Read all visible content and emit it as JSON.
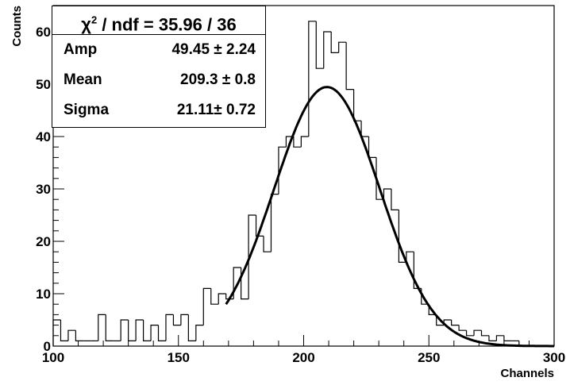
{
  "chart_data": {
    "type": "histogram",
    "title": "",
    "xlabel": "Channels",
    "ylabel": "Counts",
    "xlim": [
      100,
      300
    ],
    "ylim": [
      0,
      65
    ],
    "bin_width": 3,
    "x_ticks": [
      "100",
      "150",
      "200",
      "250",
      "300"
    ],
    "y_ticks": [
      "0",
      "10",
      "20",
      "30",
      "40",
      "50",
      "60"
    ],
    "bins": [
      {
        "x": 100,
        "y": 5
      },
      {
        "x": 103,
        "y": 1
      },
      {
        "x": 106,
        "y": 3
      },
      {
        "x": 109,
        "y": 1
      },
      {
        "x": 112,
        "y": 1
      },
      {
        "x": 115,
        "y": 1
      },
      {
        "x": 118,
        "y": 6
      },
      {
        "x": 121,
        "y": 1
      },
      {
        "x": 124,
        "y": 1
      },
      {
        "x": 127,
        "y": 5
      },
      {
        "x": 130,
        "y": 1
      },
      {
        "x": 133,
        "y": 5
      },
      {
        "x": 136,
        "y": 1
      },
      {
        "x": 139,
        "y": 4
      },
      {
        "x": 142,
        "y": 1
      },
      {
        "x": 145,
        "y": 6
      },
      {
        "x": 148,
        "y": 4
      },
      {
        "x": 151,
        "y": 6
      },
      {
        "x": 154,
        "y": 1
      },
      {
        "x": 157,
        "y": 4
      },
      {
        "x": 160,
        "y": 11
      },
      {
        "x": 163,
        "y": 8
      },
      {
        "x": 166,
        "y": 10
      },
      {
        "x": 169,
        "y": 9
      },
      {
        "x": 172,
        "y": 15
      },
      {
        "x": 175,
        "y": 9
      },
      {
        "x": 178,
        "y": 25
      },
      {
        "x": 181,
        "y": 21
      },
      {
        "x": 184,
        "y": 18
      },
      {
        "x": 187,
        "y": 29
      },
      {
        "x": 190,
        "y": 38
      },
      {
        "x": 193,
        "y": 40
      },
      {
        "x": 196,
        "y": 38
      },
      {
        "x": 199,
        "y": 40
      },
      {
        "x": 202,
        "y": 62
      },
      {
        "x": 205,
        "y": 53
      },
      {
        "x": 208,
        "y": 60
      },
      {
        "x": 211,
        "y": 56
      },
      {
        "x": 214,
        "y": 58
      },
      {
        "x": 217,
        "y": 49
      },
      {
        "x": 220,
        "y": 43
      },
      {
        "x": 223,
        "y": 40
      },
      {
        "x": 226,
        "y": 36
      },
      {
        "x": 229,
        "y": 28
      },
      {
        "x": 232,
        "y": 30
      },
      {
        "x": 235,
        "y": 26
      },
      {
        "x": 238,
        "y": 16
      },
      {
        "x": 241,
        "y": 18
      },
      {
        "x": 244,
        "y": 11
      },
      {
        "x": 247,
        "y": 8
      },
      {
        "x": 250,
        "y": 6
      },
      {
        "x": 253,
        "y": 4
      },
      {
        "x": 256,
        "y": 5
      },
      {
        "x": 259,
        "y": 4
      },
      {
        "x": 262,
        "y": 3
      },
      {
        "x": 265,
        "y": 2
      },
      {
        "x": 268,
        "y": 3
      },
      {
        "x": 271,
        "y": 2
      },
      {
        "x": 274,
        "y": 1
      },
      {
        "x": 277,
        "y": 2
      },
      {
        "x": 280,
        "y": 1
      },
      {
        "x": 283,
        "y": 1
      },
      {
        "x": 286,
        "y": 0
      },
      {
        "x": 289,
        "y": 0
      },
      {
        "x": 292,
        "y": 0
      },
      {
        "x": 295,
        "y": 0
      }
    ],
    "fit": {
      "function": "gaussian",
      "x_range": [
        169,
        300
      ],
      "amp": 49.45,
      "mean": 209.3,
      "sigma": 21.11
    },
    "stats_box": {
      "chi2_ndf": "/ ndf = 35.96 / 36",
      "rows": [
        {
          "label": "Amp",
          "value": "49.45 ± 2.24"
        },
        {
          "label": "Mean",
          "value": "209.3 ± 0.8"
        },
        {
          "label": "Sigma",
          "value": "21.11± 0.72"
        }
      ]
    },
    "colors": {
      "histogram": "#000000",
      "fit": "#000000",
      "background": "#ffffff"
    },
    "grid": false,
    "legend": "top-left"
  }
}
